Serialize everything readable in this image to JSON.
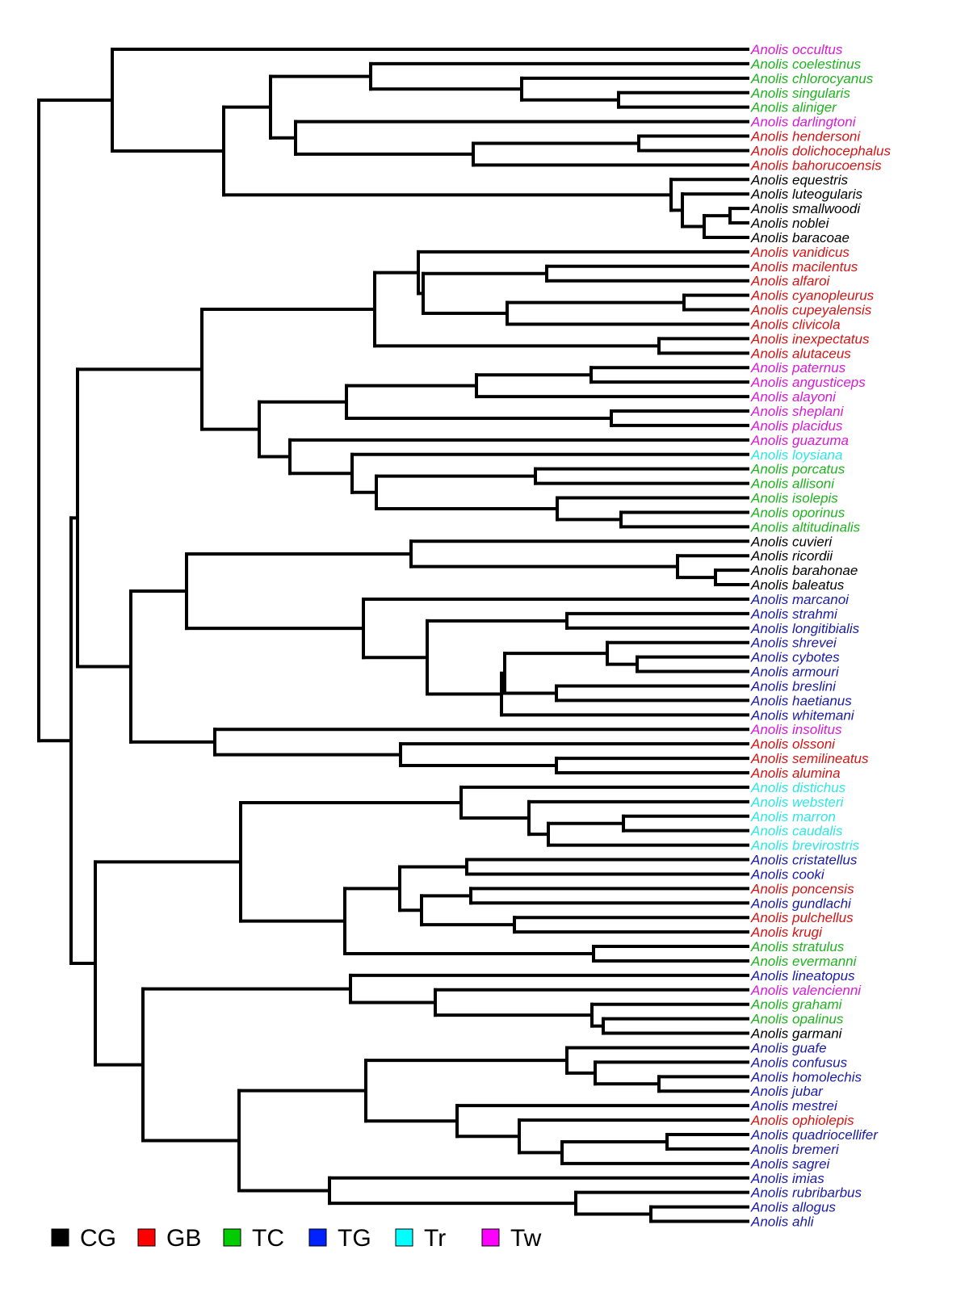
{
  "colors": {
    "CG": "#000000",
    "GB": "#d41414",
    "TC": "#1fb21f",
    "TG": "#1a1aa8",
    "Tr": "#2ee6e6",
    "Tw": "#d61ad6"
  },
  "legend": [
    {
      "code": "CG",
      "label": "CG",
      "swatch": "#000000"
    },
    {
      "code": "GB",
      "label": "GB",
      "swatch": "#ff0000"
    },
    {
      "code": "TC",
      "label": "TC",
      "swatch": "#00cc00"
    },
    {
      "code": "TG",
      "label": "TG",
      "swatch": "#0022ff"
    },
    {
      "code": "Tr",
      "label": "Tr",
      "swatch": "#00ffff"
    },
    {
      "code": "Tw",
      "label": "Tw",
      "swatch": "#ff00ff"
    }
  ],
  "tips": [
    {
      "name": "Anolis occultus",
      "group": "Tw"
    },
    {
      "name": "Anolis coelestinus",
      "group": "TC"
    },
    {
      "name": "Anolis chlorocyanus",
      "group": "TC"
    },
    {
      "name": "Anolis singularis",
      "group": "TC"
    },
    {
      "name": "Anolis aliniger",
      "group": "TC"
    },
    {
      "name": "Anolis darlingtoni",
      "group": "Tw"
    },
    {
      "name": "Anolis hendersoni",
      "group": "GB"
    },
    {
      "name": "Anolis dolichocephalus",
      "group": "GB"
    },
    {
      "name": "Anolis bahorucoensis",
      "group": "GB"
    },
    {
      "name": "Anolis equestris",
      "group": "CG"
    },
    {
      "name": "Anolis luteogularis",
      "group": "CG"
    },
    {
      "name": "Anolis smallwoodi",
      "group": "CG"
    },
    {
      "name": "Anolis noblei",
      "group": "CG"
    },
    {
      "name": "Anolis baracoae",
      "group": "CG"
    },
    {
      "name": "Anolis vanidicus",
      "group": "GB"
    },
    {
      "name": "Anolis macilentus",
      "group": "GB"
    },
    {
      "name": "Anolis alfaroi",
      "group": "GB"
    },
    {
      "name": "Anolis cyanopleurus",
      "group": "GB"
    },
    {
      "name": "Anolis cupeyalensis",
      "group": "GB"
    },
    {
      "name": "Anolis clivicola",
      "group": "GB"
    },
    {
      "name": "Anolis inexpectatus",
      "group": "GB"
    },
    {
      "name": "Anolis alutaceus",
      "group": "GB"
    },
    {
      "name": "Anolis paternus",
      "group": "Tw"
    },
    {
      "name": "Anolis angusticeps",
      "group": "Tw"
    },
    {
      "name": "Anolis alayoni",
      "group": "Tw"
    },
    {
      "name": "Anolis sheplani",
      "group": "Tw"
    },
    {
      "name": "Anolis placidus",
      "group": "Tw"
    },
    {
      "name": "Anolis guazuma",
      "group": "Tw"
    },
    {
      "name": "Anolis loysiana",
      "group": "Tr"
    },
    {
      "name": "Anolis porcatus",
      "group": "TC"
    },
    {
      "name": "Anolis allisoni",
      "group": "TC"
    },
    {
      "name": "Anolis isolepis",
      "group": "TC"
    },
    {
      "name": "Anolis oporinus",
      "group": "TC"
    },
    {
      "name": "Anolis altitudinalis",
      "group": "TC"
    },
    {
      "name": "Anolis cuvieri",
      "group": "CG"
    },
    {
      "name": "Anolis ricordii",
      "group": "CG"
    },
    {
      "name": "Anolis barahonae",
      "group": "CG"
    },
    {
      "name": "Anolis baleatus",
      "group": "CG"
    },
    {
      "name": "Anolis marcanoi",
      "group": "TG"
    },
    {
      "name": "Anolis strahmi",
      "group": "TG"
    },
    {
      "name": "Anolis longitibialis",
      "group": "TG"
    },
    {
      "name": "Anolis shrevei",
      "group": "TG"
    },
    {
      "name": "Anolis cybotes",
      "group": "TG"
    },
    {
      "name": "Anolis armouri",
      "group": "TG"
    },
    {
      "name": "Anolis breslini",
      "group": "TG"
    },
    {
      "name": "Anolis haetianus",
      "group": "TG"
    },
    {
      "name": "Anolis whitemani",
      "group": "TG"
    },
    {
      "name": "Anolis insolitus",
      "group": "Tw"
    },
    {
      "name": "Anolis olssoni",
      "group": "GB"
    },
    {
      "name": "Anolis semilineatus",
      "group": "GB"
    },
    {
      "name": "Anolis alumina",
      "group": "GB"
    },
    {
      "name": "Anolis distichus",
      "group": "Tr"
    },
    {
      "name": "Anolis websteri",
      "group": "Tr"
    },
    {
      "name": "Anolis marron",
      "group": "Tr"
    },
    {
      "name": "Anolis caudalis",
      "group": "Tr"
    },
    {
      "name": "Anolis brevirostris",
      "group": "Tr"
    },
    {
      "name": "Anolis cristatellus",
      "group": "TG"
    },
    {
      "name": "Anolis cooki",
      "group": "TG"
    },
    {
      "name": "Anolis poncensis",
      "group": "GB"
    },
    {
      "name": "Anolis gundlachi",
      "group": "TG"
    },
    {
      "name": "Anolis pulchellus",
      "group": "GB"
    },
    {
      "name": "Anolis krugi",
      "group": "GB"
    },
    {
      "name": "Anolis stratulus",
      "group": "TC"
    },
    {
      "name": "Anolis evermanni",
      "group": "TC"
    },
    {
      "name": "Anolis lineatopus",
      "group": "TG"
    },
    {
      "name": "Anolis valencienni",
      "group": "Tw"
    },
    {
      "name": "Anolis grahami",
      "group": "TC"
    },
    {
      "name": "Anolis opalinus",
      "group": "TC"
    },
    {
      "name": "Anolis garmani",
      "group": "CG"
    },
    {
      "name": "Anolis guafe",
      "group": "TG"
    },
    {
      "name": "Anolis confusus",
      "group": "TG"
    },
    {
      "name": "Anolis homolechis",
      "group": "TG"
    },
    {
      "name": "Anolis jubar",
      "group": "TG"
    },
    {
      "name": "Anolis mestrei",
      "group": "TG"
    },
    {
      "name": "Anolis ophiolepis",
      "group": "GB"
    },
    {
      "name": "Anolis quadriocellifer",
      "group": "TG"
    },
    {
      "name": "Anolis bremeri",
      "group": "TG"
    },
    {
      "name": "Anolis sagrei",
      "group": "TG"
    },
    {
      "name": "Anolis imias",
      "group": "TG"
    },
    {
      "name": "Anolis rubribarbus",
      "group": "TG"
    },
    {
      "name": "Anolis allogus",
      "group": "TG"
    },
    {
      "name": "Anolis ahli",
      "group": "TG"
    }
  ]
}
